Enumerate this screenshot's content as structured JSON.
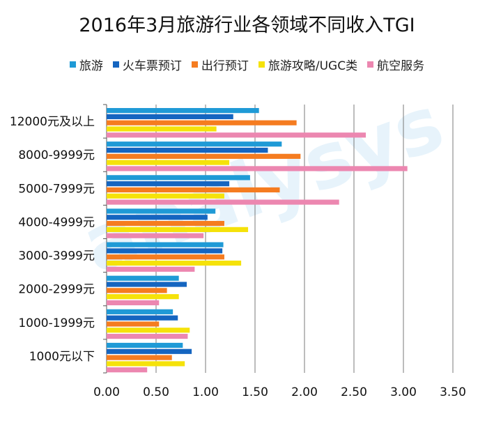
{
  "chart_data": {
    "type": "bar",
    "orientation": "horizontal",
    "title": "2016年3月旅游行业各领域不同收入TGI",
    "categories": [
      "12000元及以上",
      "8000-9999元",
      "5000-7999元",
      "4000-4999元",
      "3000-3999元",
      "2000-2999元",
      "1000-1999元",
      "1000元以下"
    ],
    "series": [
      {
        "name": "旅游",
        "color": "#1f9ad6",
        "values": [
          1.54,
          1.77,
          1.45,
          1.1,
          1.18,
          0.73,
          0.67,
          0.77
        ]
      },
      {
        "name": "火车票预订",
        "color": "#1565c0",
        "values": [
          1.28,
          1.63,
          1.24,
          1.02,
          1.17,
          0.81,
          0.72,
          0.86
        ]
      },
      {
        "name": "出行预订",
        "color": "#f57c20",
        "values": [
          1.92,
          1.96,
          1.75,
          1.19,
          1.19,
          0.61,
          0.53,
          0.66
        ]
      },
      {
        "name": "旅游攻略/UGC类",
        "color": "#f5e20a",
        "values": [
          1.11,
          1.24,
          1.19,
          1.43,
          1.36,
          0.73,
          0.84,
          0.79
        ]
      },
      {
        "name": "航空服务",
        "color": "#ec87b0",
        "values": [
          2.62,
          3.04,
          2.35,
          0.98,
          0.89,
          0.53,
          0.82,
          0.41
        ]
      }
    ],
    "xlim": [
      0,
      3.5
    ],
    "xticks": [
      "0.00",
      "0.50",
      "1.00",
      "1.50",
      "2.00",
      "2.50",
      "3.00",
      "3.50"
    ],
    "grid": "vertical",
    "legend_position": "top"
  },
  "watermark": "analysys",
  "colors": {
    "grid": "#7a7a7a",
    "axis": "#555555"
  }
}
